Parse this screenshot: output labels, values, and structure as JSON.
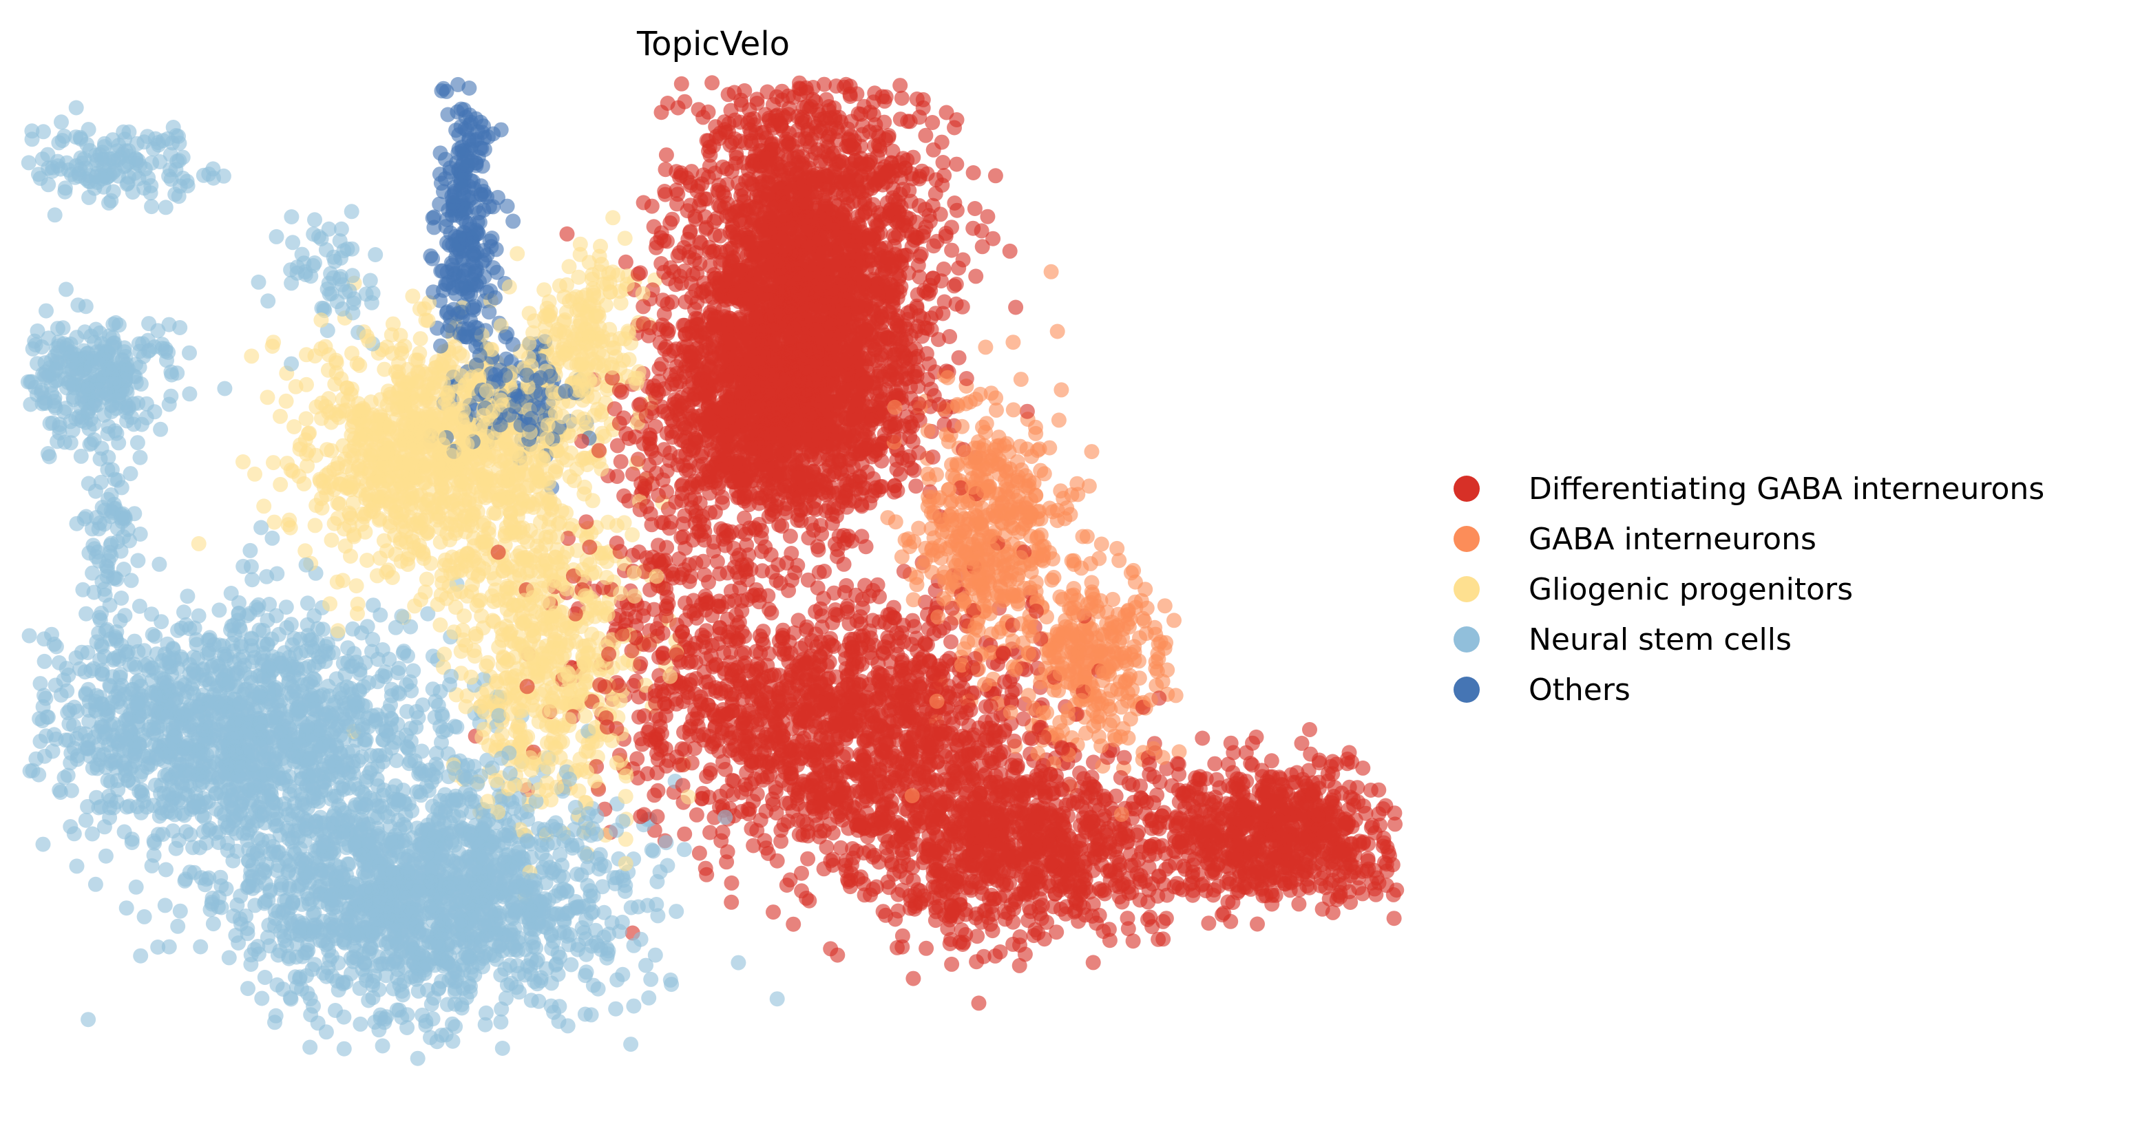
{
  "chart_data": {
    "type": "scatter",
    "title": "TopicVelo",
    "xlabel": "",
    "ylabel": "",
    "axes_visible": false,
    "grid": false,
    "legend_position": "right",
    "point_alpha": 0.6,
    "series": [
      {
        "name": "Differentiating GABA interneurons",
        "color": "#d73027",
        "clusters": [
          {
            "cx": 0.57,
            "cy": 0.2,
            "sx": 0.045,
            "sy": 0.11,
            "n": 2600
          },
          {
            "cx": 0.54,
            "cy": 0.34,
            "sx": 0.05,
            "sy": 0.06,
            "n": 1200
          },
          {
            "cx": 0.6,
            "cy": 0.66,
            "sx": 0.07,
            "sy": 0.07,
            "n": 1400
          },
          {
            "cx": 0.72,
            "cy": 0.78,
            "sx": 0.055,
            "sy": 0.05,
            "n": 900
          },
          {
            "cx": 0.91,
            "cy": 0.77,
            "sx": 0.05,
            "sy": 0.035,
            "n": 800
          },
          {
            "cx": 0.47,
            "cy": 0.56,
            "sx": 0.04,
            "sy": 0.07,
            "n": 250
          }
        ]
      },
      {
        "name": "GABA interneurons",
        "color": "#fc8d59",
        "clusters": [
          {
            "cx": 0.7,
            "cy": 0.46,
            "sx": 0.03,
            "sy": 0.07,
            "n": 500
          },
          {
            "cx": 0.78,
            "cy": 0.59,
            "sx": 0.025,
            "sy": 0.05,
            "n": 300
          }
        ]
      },
      {
        "name": "Gliogenic progenitors",
        "color": "#fee090",
        "clusters": [
          {
            "cx": 0.3,
            "cy": 0.38,
            "sx": 0.05,
            "sy": 0.06,
            "n": 1100
          },
          {
            "cx": 0.38,
            "cy": 0.58,
            "sx": 0.035,
            "sy": 0.09,
            "n": 600
          },
          {
            "cx": 0.41,
            "cy": 0.26,
            "sx": 0.02,
            "sy": 0.05,
            "n": 200
          }
        ]
      },
      {
        "name": "Neural stem cells",
        "color": "#91bfdb",
        "clusters": [
          {
            "cx": 0.15,
            "cy": 0.66,
            "sx": 0.07,
            "sy": 0.06,
            "n": 1500
          },
          {
            "cx": 0.29,
            "cy": 0.83,
            "sx": 0.07,
            "sy": 0.06,
            "n": 1700
          },
          {
            "cx": 0.05,
            "cy": 0.3,
            "sx": 0.025,
            "sy": 0.03,
            "n": 300
          },
          {
            "cx": 0.06,
            "cy": 0.08,
            "sx": 0.03,
            "sy": 0.02,
            "n": 150
          },
          {
            "cx": 0.06,
            "cy": 0.46,
            "sx": 0.01,
            "sy": 0.05,
            "n": 80
          },
          {
            "cx": 0.22,
            "cy": 0.2,
            "sx": 0.02,
            "sy": 0.03,
            "n": 60
          }
        ]
      },
      {
        "name": "Others",
        "color": "#4575b4",
        "clusters": [
          {
            "cx": 0.32,
            "cy": 0.15,
            "sx": 0.012,
            "sy": 0.08,
            "n": 300
          },
          {
            "cx": 0.36,
            "cy": 0.32,
            "sx": 0.02,
            "sy": 0.03,
            "n": 120
          }
        ]
      }
    ]
  }
}
